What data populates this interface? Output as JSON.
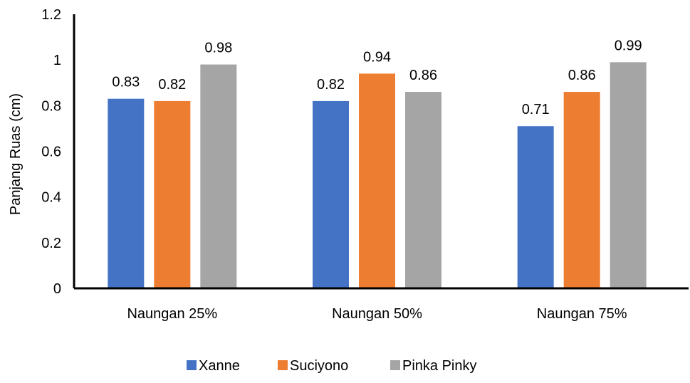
{
  "chart_data": {
    "type": "bar",
    "title": "",
    "xlabel": "",
    "ylabel": "Panjang Ruas (cm)",
    "ylim": [
      0,
      1.2
    ],
    "yticks": [
      0,
      0.2,
      0.4,
      0.6,
      0.8,
      1,
      1.2
    ],
    "ytick_labels": [
      "0",
      "0.2",
      "0.4",
      "0.6",
      "0.8",
      "1",
      "1.2"
    ],
    "grid": false,
    "legend_position": "bottom",
    "categories": [
      "Naungan 25%",
      "Naungan 50%",
      "Naungan 75%"
    ],
    "series": [
      {
        "name": "Xanne",
        "color": "#4472C4",
        "values": [
          0.83,
          0.82,
          0.71
        ],
        "labels": [
          "0.83",
          "0.82",
          "0.71"
        ]
      },
      {
        "name": "Suciyono",
        "color": "#ED7D31",
        "values": [
          0.82,
          0.94,
          0.86
        ],
        "labels": [
          "0.82",
          "0.94",
          "0.86"
        ]
      },
      {
        "name": "Pinka Pinky",
        "color": "#A5A5A5",
        "values": [
          0.98,
          0.86,
          0.99
        ],
        "labels": [
          "0.98",
          "0.86",
          "0.99"
        ]
      }
    ]
  }
}
